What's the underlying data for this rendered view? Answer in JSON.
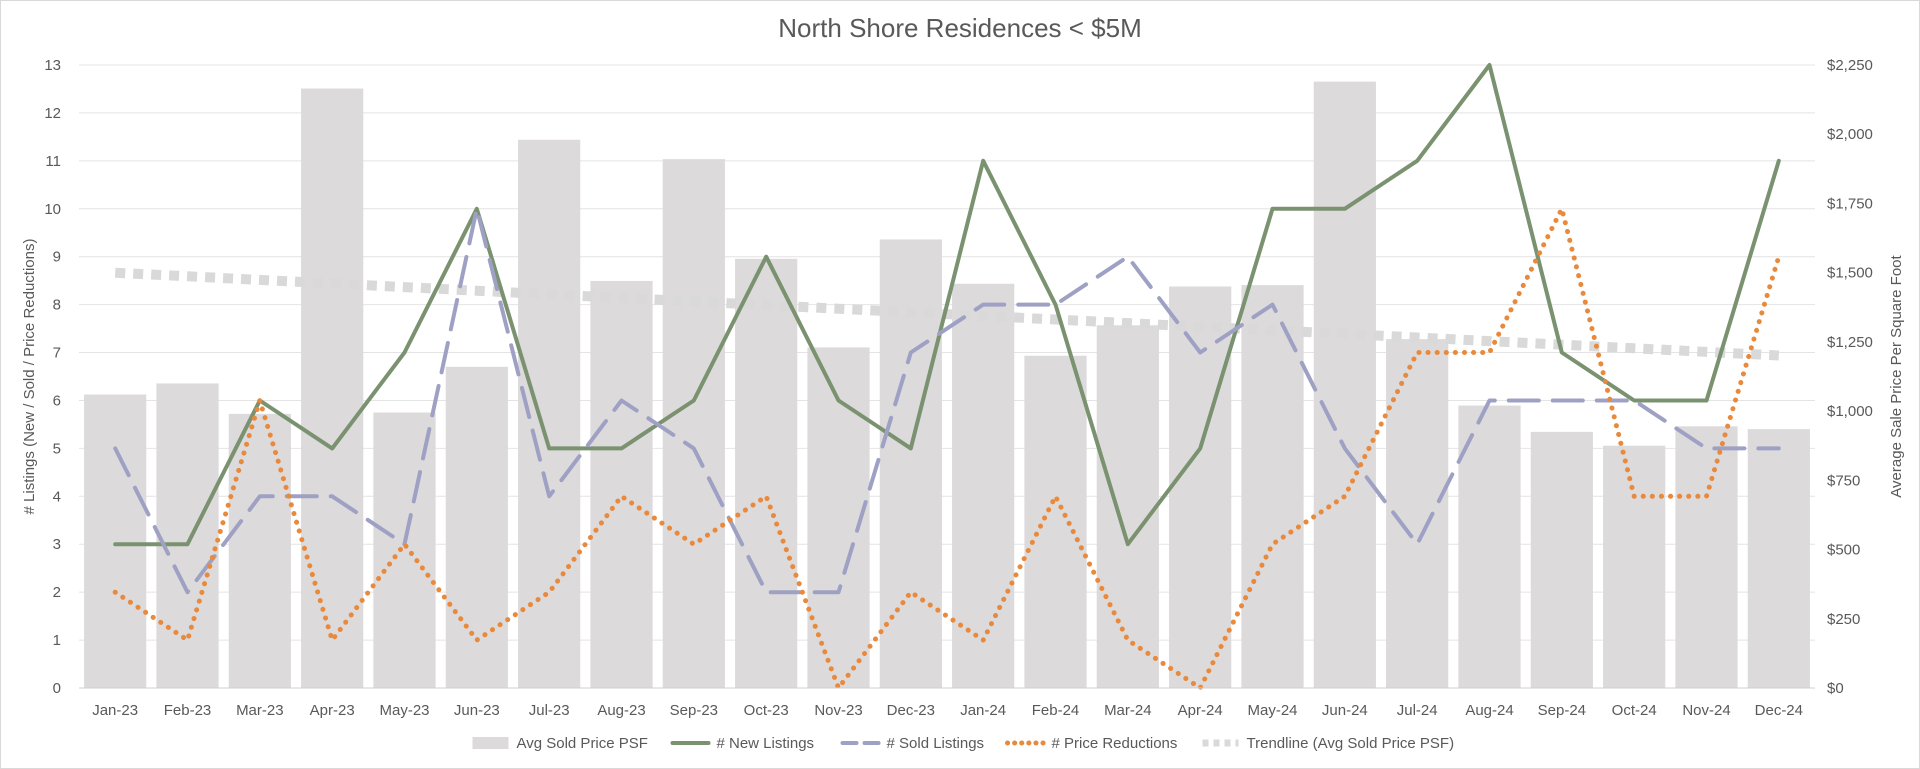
{
  "chart_data": {
    "type": "bar",
    "title": "North Shore Residences < $5M",
    "categories": [
      "Jan-23",
      "Feb-23",
      "Mar-23",
      "Apr-23",
      "May-23",
      "Jun-23",
      "Jul-23",
      "Aug-23",
      "Sep-23",
      "Oct-23",
      "Nov-23",
      "Dec-23",
      "Jan-24",
      "Feb-24",
      "Mar-24",
      "Apr-24",
      "May-24",
      "Jun-24",
      "Jul-24",
      "Aug-24",
      "Sep-24",
      "Oct-24",
      "Nov-24",
      "Dec-24"
    ],
    "y_left": {
      "label": "# Listings (New / Sold / Price Reductions)",
      "ticks": [
        "0",
        "1",
        "2",
        "3",
        "4",
        "5",
        "6",
        "7",
        "8",
        "9",
        "10",
        "11",
        "12",
        "13"
      ],
      "ylim": [
        0,
        13
      ]
    },
    "y_right": {
      "label": "Average Sale Price Per Square Foot",
      "ticks": [
        "$0",
        "$250",
        "$500",
        "$750",
        "$1,000",
        "$1,250",
        "$1,500",
        "$1,750",
        "$2,000",
        "$2,250"
      ],
      "ylim": [
        0,
        2250
      ]
    },
    "grid": true,
    "legend_position": "bottom",
    "series": [
      {
        "name": "Avg Sold Price PSF",
        "kind": "bar",
        "axis": "right",
        "color": "#dcdadb",
        "values": [
          1060,
          1100,
          990,
          2165,
          995,
          1160,
          1980,
          1470,
          1910,
          1550,
          1230,
          1620,
          1460,
          1200,
          1310,
          1450,
          1455,
          2190,
          1260,
          1020,
          925,
          875,
          945,
          935
        ]
      },
      {
        "name": "# New Listings",
        "kind": "line",
        "style": "solid",
        "axis": "left",
        "color": "#7a9270",
        "values": [
          3,
          3,
          6,
          5,
          7,
          10,
          5,
          5,
          6,
          9,
          6,
          5,
          11,
          8,
          3,
          5,
          10,
          10,
          11,
          13,
          7,
          6,
          6,
          11
        ]
      },
      {
        "name": "# Sold Listings",
        "kind": "line",
        "style": "dashed",
        "axis": "left",
        "color": "#9fa1c4",
        "values": [
          5,
          2,
          4,
          4,
          3,
          10,
          4,
          6,
          5,
          2,
          2,
          7,
          8,
          8,
          9,
          7,
          8,
          5,
          3,
          6,
          6,
          6,
          5,
          5
        ]
      },
      {
        "name": "# Price Reductions",
        "kind": "line",
        "style": "dotted",
        "axis": "left",
        "color": "#e8893c",
        "values": [
          2,
          1,
          6,
          1,
          3,
          1,
          2,
          4,
          3,
          4,
          0,
          2,
          1,
          4,
          1,
          0,
          3,
          4,
          7,
          7,
          10,
          4,
          4,
          9
        ]
      },
      {
        "name": "Trendline (Avg Sold Price PSF)",
        "kind": "line",
        "style": "thick-dotted",
        "axis": "right",
        "color": "#d9d9d9",
        "values": [
          1500,
          1487,
          1474,
          1461,
          1448,
          1435,
          1422,
          1409,
          1396,
          1383,
          1370,
          1357,
          1344,
          1331,
          1318,
          1305,
          1292,
          1279,
          1266,
          1253,
          1240,
          1227,
          1214,
          1201
        ]
      }
    ]
  }
}
